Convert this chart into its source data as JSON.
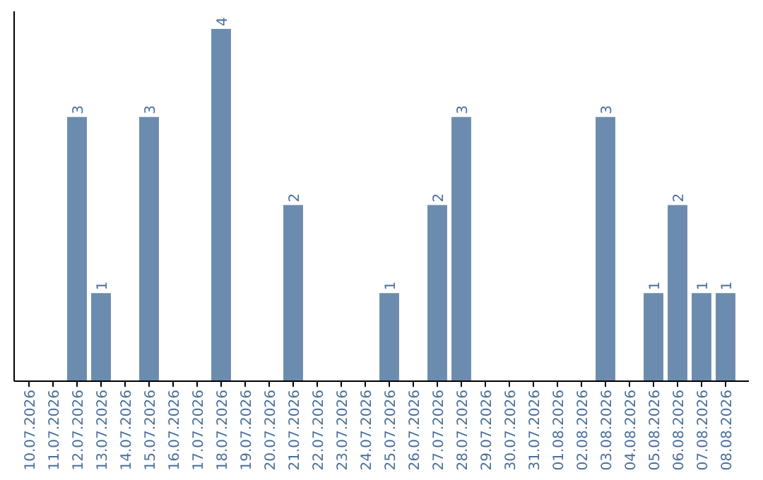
{
  "chart_data": {
    "type": "bar",
    "categories": [
      "10.07.2026",
      "11.07.2026",
      "12.07.2026",
      "13.07.2026",
      "14.07.2026",
      "15.07.2026",
      "16.07.2026",
      "17.07.2026",
      "18.07.2026",
      "19.07.2026",
      "20.07.2026",
      "21.07.2026",
      "22.07.2026",
      "23.07.2026",
      "24.07.2026",
      "25.07.2026",
      "26.07.2026",
      "27.07.2026",
      "28.07.2026",
      "29.07.2026",
      "30.07.2026",
      "31.07.2026",
      "01.08.2026",
      "02.08.2026",
      "03.08.2026",
      "04.08.2026",
      "05.08.2026",
      "06.08.2026",
      "07.08.2026",
      "08.08.2026"
    ],
    "values": [
      0,
      0,
      3,
      1,
      0,
      3,
      0,
      0,
      4,
      0,
      0,
      2,
      0,
      0,
      0,
      1,
      0,
      2,
      3,
      0,
      0,
      0,
      0,
      0,
      3,
      0,
      1,
      2,
      1,
      1
    ],
    "value_labels": [
      null,
      null,
      "3",
      "1",
      null,
      "3",
      null,
      null,
      "4",
      null,
      null,
      "2",
      null,
      null,
      null,
      "1",
      null,
      "2",
      "3",
      null,
      null,
      null,
      null,
      null,
      "3",
      null,
      "1",
      "2",
      "1",
      "1"
    ],
    "color": "#6b8cae",
    "ylim": [
      0,
      4.2
    ],
    "tick_labels": "x"
  }
}
